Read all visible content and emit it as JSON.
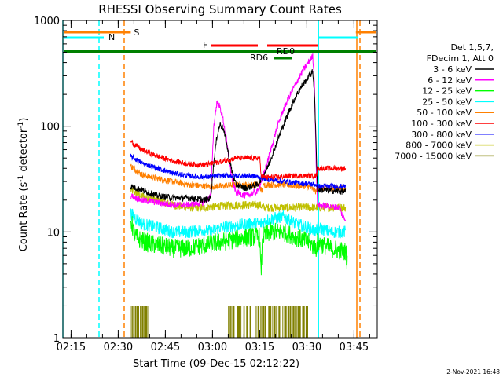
{
  "chart_data": {
    "type": "line",
    "title": "RHESSI Observing Summary Count Rates",
    "xlabel": "Start Time (09-Dec-15 02:12:22)",
    "ylabel_main": "Count Rate (s",
    "ylabel_sup1": "-1",
    "ylabel_mid": " detector",
    "ylabel_sup2": "-1",
    "ylabel_end": ")",
    "yscale": "log",
    "ylim": [
      1,
      1000
    ],
    "xlim_minutes": [
      0,
      100
    ],
    "x_ticks": [
      {
        "label": "02:15",
        "minute": 2.6
      },
      {
        "label": "02:30",
        "minute": 17.6
      },
      {
        "label": "02:45",
        "minute": 32.6
      },
      {
        "label": "03:00",
        "minute": 47.6
      },
      {
        "label": "03:15",
        "minute": 62.6
      },
      {
        "label": "03:30",
        "minute": 77.6
      },
      {
        "label": "03:45",
        "minute": 92.6
      }
    ],
    "y_ticks": [
      {
        "label": "1",
        "value": 1
      },
      {
        "label": "10",
        "value": 10
      },
      {
        "label": "100",
        "value": 100
      },
      {
        "label": "1000",
        "value": 1000
      }
    ],
    "legend_header": [
      "Det 1,5,7,",
      "FDecim 1, Att 0"
    ],
    "legend_position": "right",
    "series": [
      {
        "name": "3 - 6 keV",
        "color": "#000000",
        "points": [
          [
            21.6,
            27
          ],
          [
            25,
            25
          ],
          [
            30,
            22
          ],
          [
            35,
            21
          ],
          [
            40,
            21
          ],
          [
            45,
            20
          ],
          [
            47,
            21
          ],
          [
            48,
            45
          ],
          [
            49,
            80
          ],
          [
            50,
            105
          ],
          [
            51,
            95
          ],
          [
            52,
            70
          ],
          [
            53,
            48
          ],
          [
            54,
            35
          ],
          [
            55,
            28
          ],
          [
            58,
            26
          ],
          [
            62,
            28
          ],
          [
            65,
            40
          ],
          [
            68,
            70
          ],
          [
            70,
            100
          ],
          [
            72,
            140
          ],
          [
            74,
            190
          ],
          [
            76,
            240
          ],
          [
            78,
            290
          ],
          [
            79.5,
            330
          ],
          [
            80,
            210
          ],
          [
            80.6,
            60
          ],
          [
            81,
            25
          ],
          [
            90,
            24
          ]
        ]
      },
      {
        "name": "6 - 12 keV",
        "color": "#ff00ff",
        "points": [
          [
            21.6,
            22
          ],
          [
            25,
            20
          ],
          [
            30,
            19
          ],
          [
            35,
            18
          ],
          [
            40,
            18
          ],
          [
            45,
            19
          ],
          [
            47,
            22
          ],
          [
            48,
            100
          ],
          [
            49,
            170
          ],
          [
            50,
            150
          ],
          [
            51,
            115
          ],
          [
            52,
            75
          ],
          [
            53,
            45
          ],
          [
            54,
            30
          ],
          [
            55,
            24
          ],
          [
            58,
            22
          ],
          [
            62,
            24
          ],
          [
            65,
            45
          ],
          [
            68,
            95
          ],
          [
            70,
            140
          ],
          [
            72,
            190
          ],
          [
            74,
            250
          ],
          [
            76,
            320
          ],
          [
            78,
            400
          ],
          [
            79.5,
            460
          ],
          [
            80,
            270
          ],
          [
            80.6,
            40
          ],
          [
            81,
            18
          ],
          [
            88,
            17
          ],
          [
            89,
            14
          ],
          [
            90,
            13
          ]
        ]
      },
      {
        "name": "12 - 25 keV",
        "color": "#00ff00",
        "points": [
          [
            21.6,
            13
          ],
          [
            23,
            9
          ],
          [
            26,
            8
          ],
          [
            30,
            7.5
          ],
          [
            35,
            7
          ],
          [
            40,
            7
          ],
          [
            45,
            7.5
          ],
          [
            50,
            8
          ],
          [
            55,
            8.5
          ],
          [
            60,
            9
          ],
          [
            62.6,
            9
          ],
          [
            63,
            4
          ],
          [
            63.6,
            9
          ],
          [
            66,
            10
          ],
          [
            70,
            10
          ],
          [
            74,
            9
          ],
          [
            78,
            8
          ],
          [
            80.6,
            7
          ],
          [
            81,
            8
          ],
          [
            85,
            7
          ],
          [
            90,
            6.5
          ],
          [
            90.5,
            5
          ]
        ]
      },
      {
        "name": "25 - 50 keV",
        "color": "#00ffff",
        "points": [
          [
            21.6,
            15
          ],
          [
            25,
            12
          ],
          [
            30,
            11
          ],
          [
            35,
            10
          ],
          [
            40,
            10
          ],
          [
            45,
            10.5
          ],
          [
            47,
            10
          ],
          [
            50,
            11
          ],
          [
            55,
            11.5
          ],
          [
            60,
            12
          ],
          [
            63,
            12
          ],
          [
            65,
            13
          ],
          [
            70,
            14
          ],
          [
            74,
            12
          ],
          [
            78,
            11
          ],
          [
            80.6,
            10
          ],
          [
            81,
            11
          ],
          [
            85,
            10
          ],
          [
            90,
            10
          ]
        ]
      },
      {
        "name": "50 - 100 keV",
        "color": "#ff8000",
        "points": [
          [
            21.6,
            42
          ],
          [
            25,
            35
          ],
          [
            30,
            32
          ],
          [
            35,
            30
          ],
          [
            40,
            28
          ],
          [
            45,
            27
          ],
          [
            50,
            27
          ],
          [
            55,
            28
          ],
          [
            60,
            28
          ],
          [
            62.6,
            28
          ],
          [
            63.2,
            24
          ],
          [
            64,
            28
          ],
          [
            70,
            28
          ],
          [
            75,
            27
          ],
          [
            78,
            27
          ],
          [
            80.6,
            24
          ],
          [
            81,
            26
          ],
          [
            85,
            26
          ],
          [
            90,
            26
          ]
        ]
      },
      {
        "name": "100 - 300 keV",
        "color": "#ff0000",
        "points": [
          [
            21.6,
            72
          ],
          [
            25,
            60
          ],
          [
            30,
            52
          ],
          [
            35,
            47
          ],
          [
            40,
            44
          ],
          [
            45,
            43
          ],
          [
            50,
            46
          ],
          [
            55,
            50
          ],
          [
            60,
            50
          ],
          [
            62.6,
            50
          ],
          [
            63,
            35
          ],
          [
            64,
            33
          ],
          [
            68,
            33
          ],
          [
            72,
            34
          ],
          [
            76,
            34
          ],
          [
            80,
            34
          ],
          [
            80.6,
            34
          ],
          [
            81,
            40
          ],
          [
            85,
            40
          ],
          [
            90,
            40
          ]
        ]
      },
      {
        "name": "300 - 800 keV",
        "color": "#0000ff",
        "points": [
          [
            21.6,
            52
          ],
          [
            25,
            45
          ],
          [
            30,
            40
          ],
          [
            35,
            36
          ],
          [
            40,
            34
          ],
          [
            45,
            33
          ],
          [
            50,
            34
          ],
          [
            55,
            34
          ],
          [
            60,
            34
          ],
          [
            62.6,
            33
          ],
          [
            64,
            32
          ],
          [
            70,
            30
          ],
          [
            75,
            29
          ],
          [
            80.6,
            28
          ],
          [
            81,
            27
          ],
          [
            85,
            27
          ],
          [
            90,
            27
          ]
        ]
      },
      {
        "name": "800 - 7000 keV",
        "color": "#c0c000",
        "points": [
          [
            21.6,
            25
          ],
          [
            25,
            22
          ],
          [
            30,
            20
          ],
          [
            35,
            18
          ],
          [
            40,
            17
          ],
          [
            45,
            17
          ],
          [
            50,
            17.5
          ],
          [
            55,
            18
          ],
          [
            60,
            18
          ],
          [
            62.6,
            18
          ],
          [
            64,
            17
          ],
          [
            70,
            17
          ],
          [
            75,
            17
          ],
          [
            80.6,
            17
          ],
          [
            81,
            17
          ],
          [
            85,
            17
          ],
          [
            90,
            17
          ]
        ]
      },
      {
        "name": "7000 - 15000 keV",
        "color": "#808000",
        "points": []
      }
    ],
    "attenuator_bars": [
      {
        "label": "S",
        "color": "#ff8000"
      },
      {
        "label": "N",
        "color": "#00ffff"
      },
      {
        "label": "F",
        "color": "#ff0000"
      },
      {
        "label": "RD0",
        "color": "#008000"
      },
      {
        "label": "RD6",
        "color": "#008000"
      }
    ],
    "vertical_markers": [
      {
        "minute": 0,
        "color": "#00ffff",
        "style": "solid"
      },
      {
        "minute": 11.5,
        "color": "#00ffff",
        "style": "dashed"
      },
      {
        "minute": 19.5,
        "color": "#ff8000",
        "style": "dashed"
      },
      {
        "minute": 81.3,
        "color": "#00ffff",
        "style": "solid"
      },
      {
        "minute": 93.5,
        "color": "#ff8000",
        "style": "solid"
      },
      {
        "minute": 94.5,
        "color": "#ff8000",
        "style": "dashed"
      }
    ],
    "footer_timestamp": "2-Nov-2021 16:48"
  }
}
